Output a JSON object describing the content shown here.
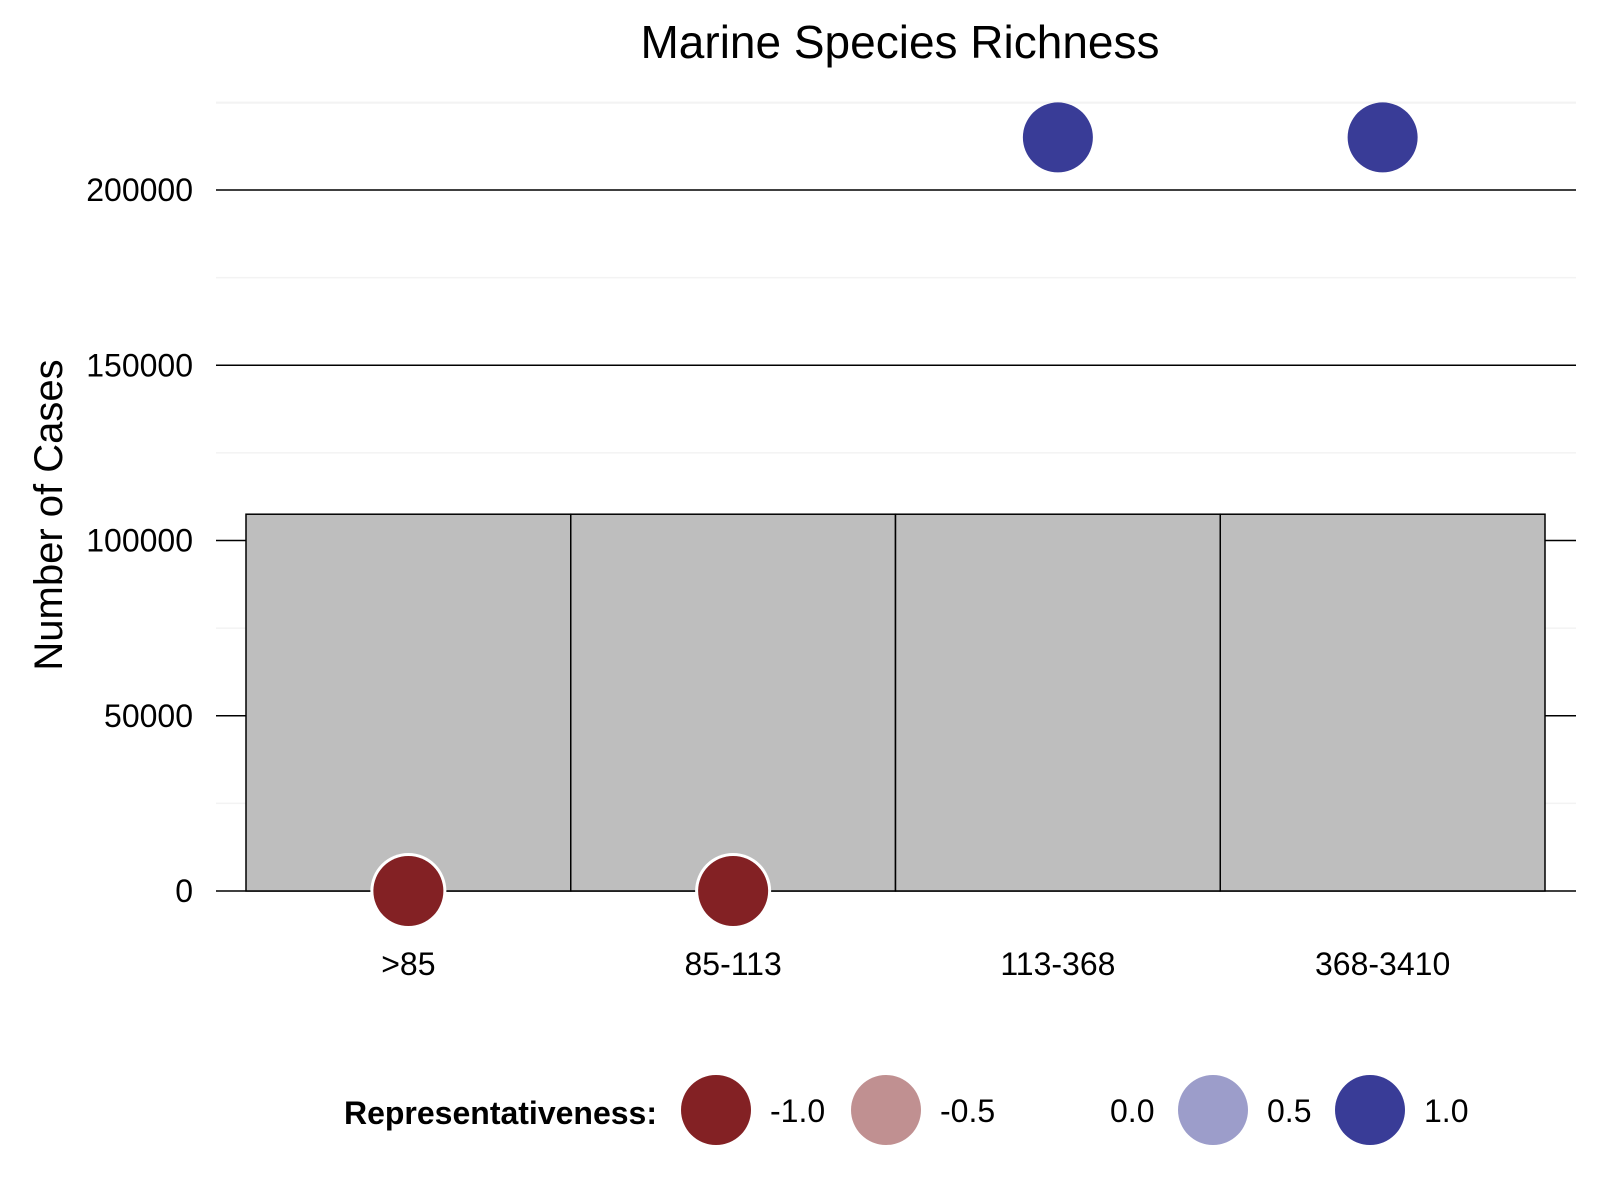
{
  "chart_data": {
    "type": "bar",
    "title": "Marine Species Richness",
    "xlabel": "",
    "ylabel": "Number of Cases",
    "ylim": [
      0,
      215000
    ],
    "y_ticks": [
      0,
      50000,
      100000,
      150000,
      200000
    ],
    "y_tick_labels": [
      "0",
      "50000",
      "100000",
      "150000",
      "200000"
    ],
    "categories": [
      ">85",
      "85-113",
      "113-368",
      "368-3410"
    ],
    "values": [
      107500,
      107500,
      107500,
      107500
    ],
    "bar_color": "#bebebe",
    "points": [
      {
        "category": ">85",
        "value": 0,
        "representativeness": -1.0
      },
      {
        "category": "85-113",
        "value": 0,
        "representativeness": -1.0
      },
      {
        "category": "113-368",
        "value": 215000,
        "representativeness": 1.0
      },
      {
        "category": "368-3410",
        "value": 215000,
        "representativeness": 1.0
      }
    ],
    "grid": true,
    "legend": {
      "title": "Representativeness:",
      "position": "bottom",
      "entries": [
        {
          "label": "-1.0",
          "color": "#832124"
        },
        {
          "label": "-0.5",
          "color": "#c09091"
        },
        {
          "label": "0.0",
          "color": ""
        },
        {
          "label": "0.5",
          "color": "#9c9dca"
        },
        {
          "label": "1.0",
          "color": "#393c97"
        }
      ]
    }
  }
}
